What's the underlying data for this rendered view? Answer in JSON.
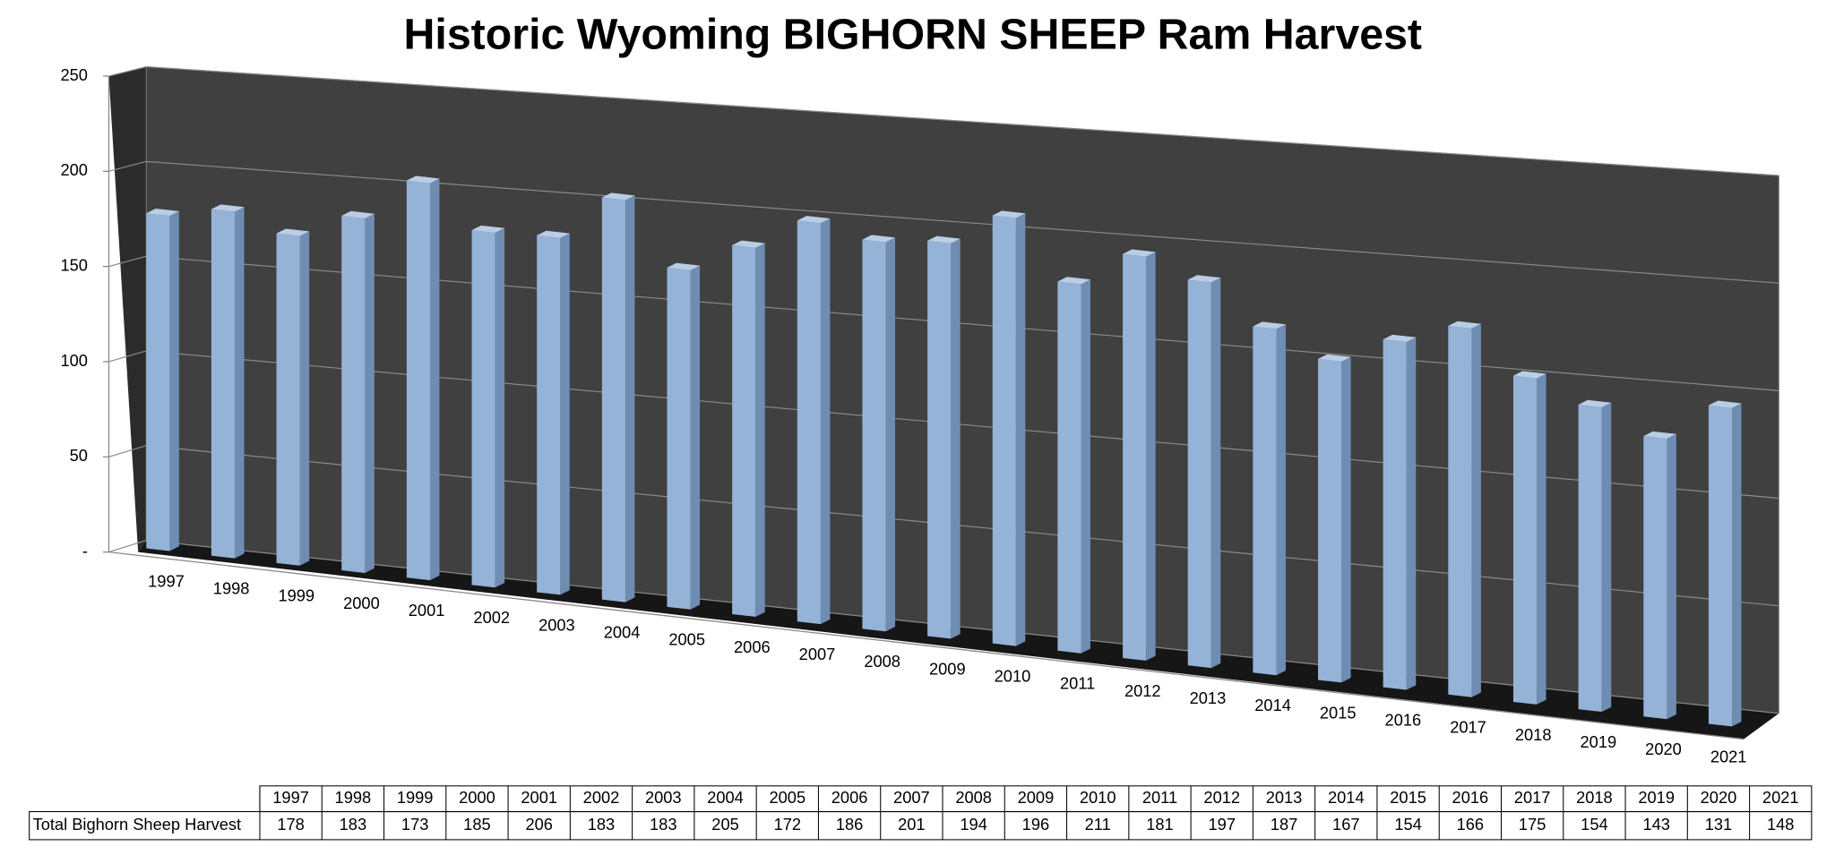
{
  "chart_data": {
    "type": "bar",
    "title": "Historic Wyoming BIGHORN SHEEP Ram Harvest",
    "categories": [
      "1997",
      "1998",
      "1999",
      "2000",
      "2001",
      "2002",
      "2003",
      "2004",
      "2005",
      "2006",
      "2007",
      "2008",
      "2009",
      "2010",
      "2011",
      "2012",
      "2013",
      "2014",
      "2015",
      "2016",
      "2017",
      "2018",
      "2019",
      "2020",
      "2021"
    ],
    "series": [
      {
        "name": "Total Bighorn Sheep Harvest",
        "color": "#95b3d7",
        "values": [
          178,
          183,
          173,
          185,
          206,
          183,
          183,
          205,
          172,
          186,
          201,
          194,
          196,
          211,
          181,
          197,
          187,
          167,
          154,
          166,
          175,
          154,
          143,
          131,
          148
        ]
      }
    ],
    "ylim": [
      0,
      250
    ],
    "yticks": [
      {
        "value": 0,
        "label": "-"
      },
      50,
      100,
      150,
      200,
      250
    ],
    "grid": true,
    "data_table": true
  }
}
